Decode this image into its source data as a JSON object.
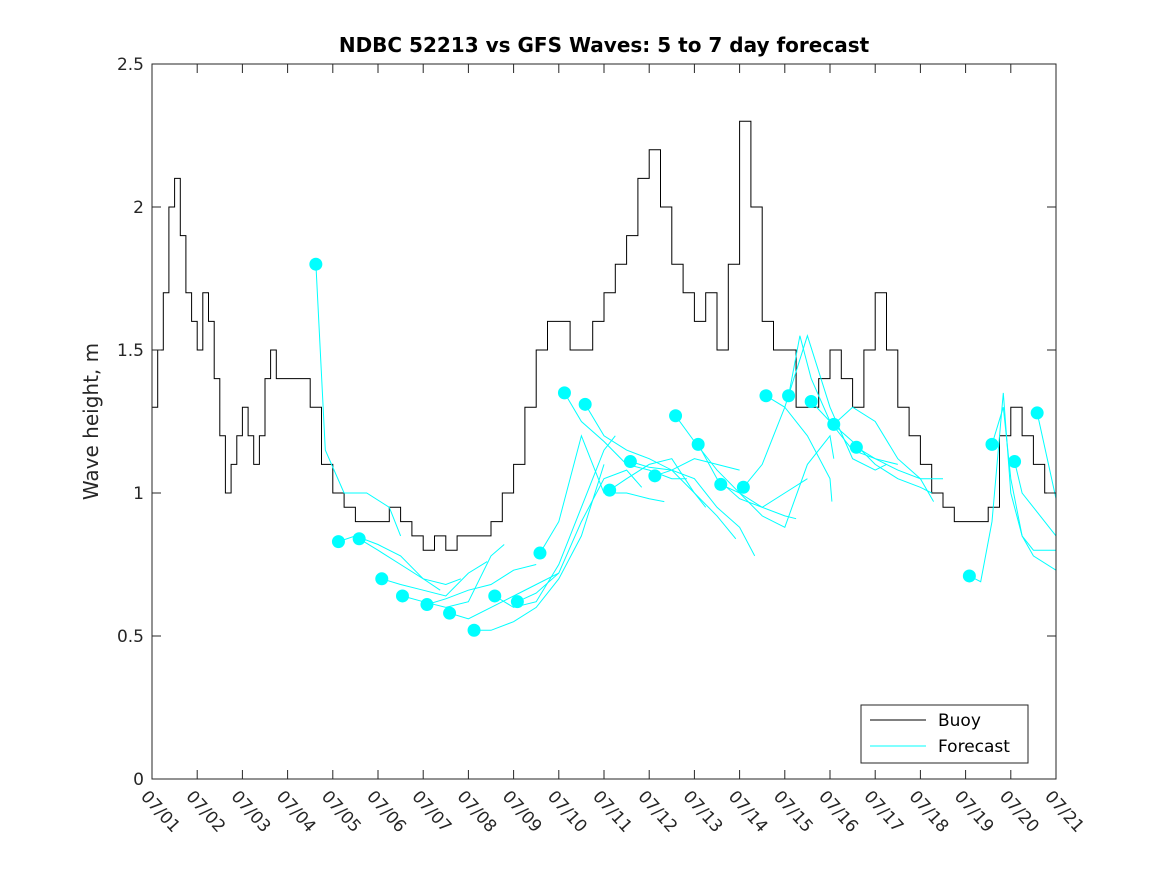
{
  "chart_data": {
    "type": "line",
    "title": "NDBC 52213 vs GFS Waves: 5 to 7 day forecast",
    "xlabel": "",
    "ylabel": "Wave height, m",
    "xlim": [
      "07/01",
      "07/21"
    ],
    "ylim": [
      0,
      2.5
    ],
    "x_tick_labels": [
      "07/01",
      "07/02",
      "07/03",
      "07/04",
      "07/05",
      "07/06",
      "07/07",
      "07/08",
      "07/09",
      "07/10",
      "07/11",
      "07/12",
      "07/13",
      "07/14",
      "07/15",
      "07/16",
      "07/17",
      "07/18",
      "07/19",
      "07/20",
      "07/21"
    ],
    "y_ticks": [
      0,
      0.5,
      1,
      1.5,
      2,
      2.5
    ],
    "y_tick_labels": [
      "0",
      "0.5",
      "1",
      "1.5",
      "2",
      "2.5"
    ],
    "legend": {
      "location": "bottom-right",
      "entries": [
        "Buoy",
        "Forecast"
      ]
    },
    "colors": {
      "buoy": "#000000",
      "forecast": "#00FFFF"
    },
    "series": [
      {
        "name": "Buoy",
        "x": [
          "07/01 00:00",
          "07/01 03:00",
          "07/01 06:00",
          "07/01 09:00",
          "07/01 12:00",
          "07/01 15:00",
          "07/01 18:00",
          "07/01 21:00",
          "07/02 00:00",
          "07/02 03:00",
          "07/02 06:00",
          "07/02 09:00",
          "07/02 12:00",
          "07/02 15:00",
          "07/02 18:00",
          "07/02 21:00",
          "07/03 00:00",
          "07/03 03:00",
          "07/03 06:00",
          "07/03 09:00",
          "07/03 12:00",
          "07/03 15:00",
          "07/03 18:00",
          "07/03 21:00",
          "07/04 00:00",
          "07/04 06:00",
          "07/04 12:00",
          "07/04 18:00",
          "07/05 00:00",
          "07/05 06:00",
          "07/05 12:00",
          "07/05 18:00",
          "07/06 00:00",
          "07/06 06:00",
          "07/06 12:00",
          "07/06 18:00",
          "07/07 00:00",
          "07/07 06:00",
          "07/07 12:00",
          "07/07 18:00",
          "07/08 00:00",
          "07/08 06:00",
          "07/08 12:00",
          "07/08 18:00",
          "07/09 00:00",
          "07/09 06:00",
          "07/09 12:00",
          "07/09 18:00",
          "07/10 00:00",
          "07/10 06:00",
          "07/10 12:00",
          "07/10 18:00",
          "07/11 00:00",
          "07/11 06:00",
          "07/11 12:00",
          "07/11 18:00",
          "07/12 00:00",
          "07/12 06:00",
          "07/12 12:00",
          "07/12 18:00",
          "07/13 00:00",
          "07/13 06:00",
          "07/13 12:00",
          "07/13 18:00",
          "07/14 00:00",
          "07/14 06:00",
          "07/14 12:00",
          "07/14 18:00",
          "07/15 00:00",
          "07/15 06:00",
          "07/15 12:00",
          "07/15 18:00",
          "07/16 00:00",
          "07/16 06:00",
          "07/16 12:00",
          "07/16 18:00",
          "07/17 00:00",
          "07/17 06:00",
          "07/17 12:00",
          "07/17 18:00",
          "07/18 00:00",
          "07/18 06:00",
          "07/18 12:00",
          "07/18 18:00",
          "07/19 00:00",
          "07/19 06:00",
          "07/19 12:00",
          "07/19 18:00",
          "07/20 00:00",
          "07/20 06:00",
          "07/20 12:00",
          "07/20 18:00",
          "07/21 00:00"
        ],
        "y": [
          1.3,
          1.5,
          1.7,
          2.0,
          2.1,
          1.9,
          1.7,
          1.6,
          1.5,
          1.7,
          1.6,
          1.4,
          1.2,
          1.0,
          1.1,
          1.2,
          1.3,
          1.2,
          1.1,
          1.2,
          1.4,
          1.5,
          1.4,
          1.4,
          1.4,
          1.4,
          1.3,
          1.1,
          1.0,
          0.95,
          0.9,
          0.9,
          0.9,
          0.95,
          0.9,
          0.85,
          0.8,
          0.85,
          0.8,
          0.85,
          0.85,
          0.85,
          0.9,
          1.0,
          1.1,
          1.3,
          1.5,
          1.6,
          1.6,
          1.5,
          1.5,
          1.6,
          1.7,
          1.8,
          1.9,
          2.1,
          2.2,
          2.0,
          1.8,
          1.7,
          1.6,
          1.7,
          1.5,
          1.8,
          2.3,
          2.0,
          1.6,
          1.5,
          1.5,
          1.3,
          1.3,
          1.4,
          1.5,
          1.4,
          1.3,
          1.5,
          1.7,
          1.5,
          1.3,
          1.2,
          1.1,
          1.0,
          0.95,
          0.9,
          0.9,
          0.9,
          0.95,
          1.2,
          1.3,
          1.2,
          1.1,
          1.0,
          1.0
        ]
      },
      {
        "name": "Forecast",
        "runs": [
          {
            "x": [
              "07/04 15:00",
              "07/04 20:00",
              "07/05 06:00",
              "07/05 18:00",
              "07/06 06:00",
              "07/06 12:00"
            ],
            "y": [
              1.8,
              1.15,
              1.0,
              1.0,
              0.95,
              0.85
            ]
          },
          {
            "x": [
              "07/05 03:00",
              "07/05 12:00",
              "07/06 00:00",
              "07/06 12:00",
              "07/07 00:00",
              "07/07 09:00"
            ],
            "y": [
              0.83,
              0.85,
              0.82,
              0.78,
              0.7,
              0.66
            ]
          },
          {
            "x": [
              "07/05 14:00",
              "07/06 00:00",
              "07/06 12:00",
              "07/07 00:00",
              "07/07 12:00",
              "07/07 20:00"
            ],
            "y": [
              0.84,
              0.8,
              0.75,
              0.7,
              0.68,
              0.7
            ]
          },
          {
            "x": [
              "07/06 02:00",
              "07/06 12:00",
              "07/07 00:00",
              "07/07 12:00",
              "07/08 00:00",
              "07/08 10:00"
            ],
            "y": [
              0.7,
              0.68,
              0.66,
              0.64,
              0.72,
              0.76
            ]
          },
          {
            "x": [
              "07/06 13:00",
              "07/07 00:00",
              "07/07 12:00",
              "07/08 00:00",
              "07/08 12:00",
              "07/08 19:00"
            ],
            "y": [
              0.64,
              0.62,
              0.6,
              0.62,
              0.78,
              0.82
            ]
          },
          {
            "x": [
              "07/07 02:00",
              "07/07 12:00",
              "07/08 00:00",
              "07/08 12:00",
              "07/09 00:00",
              "07/09 12:00"
            ],
            "y": [
              0.61,
              0.63,
              0.66,
              0.68,
              0.73,
              0.75
            ]
          },
          {
            "x": [
              "07/07 14:00",
              "07/08 00:00",
              "07/08 12:00",
              "07/09 00:00",
              "07/09 12:00",
              "07/10 00:00"
            ],
            "y": [
              0.58,
              0.56,
              0.6,
              0.64,
              0.68,
              0.72
            ]
          },
          {
            "x": [
              "07/08 03:00",
              "07/08 12:00",
              "07/09 00:00",
              "07/09 12:00",
              "07/10 00:00",
              "07/10 12:00",
              "07/11 00:00"
            ],
            "y": [
              0.52,
              0.52,
              0.55,
              0.6,
              0.7,
              0.85,
              1.1
            ]
          },
          {
            "x": [
              "07/08 14:00",
              "07/09 00:00",
              "07/09 12:00",
              "07/10 00:00",
              "07/10 12:00",
              "07/11 00:00",
              "07/11 06:00"
            ],
            "y": [
              0.64,
              0.6,
              0.62,
              0.75,
              0.95,
              1.15,
              1.2
            ]
          },
          {
            "x": [
              "07/09 02:00",
              "07/09 12:00",
              "07/10 00:00",
              "07/10 12:00",
              "07/11 00:00",
              "07/11 12:00",
              "07/11 20:00"
            ],
            "y": [
              0.62,
              0.65,
              0.72,
              0.9,
              1.05,
              1.08,
              1.02
            ]
          },
          {
            "x": [
              "07/09 14:00",
              "07/10 00:00",
              "07/10 12:00",
              "07/11 00:00",
              "07/11 12:00",
              "07/12 00:00",
              "07/12 08:00"
            ],
            "y": [
              0.79,
              0.9,
              1.2,
              1.0,
              1.0,
              0.98,
              0.97
            ]
          },
          {
            "x": [
              "07/10 03:00",
              "07/10 12:00",
              "07/11 00:00",
              "07/11 12:00",
              "07/12 00:00",
              "07/12 12:00",
              "07/12 20:00"
            ],
            "y": [
              1.35,
              1.25,
              1.18,
              1.1,
              1.08,
              1.05,
              1.05
            ]
          },
          {
            "x": [
              "07/10 14:00",
              "07/11 00:00",
              "07/11 12:00",
              "07/12 00:00",
              "07/12 12:00",
              "07/13 00:00",
              "07/13 06:00"
            ],
            "y": [
              1.31,
              1.2,
              1.15,
              1.12,
              1.08,
              1.0,
              0.95
            ]
          },
          {
            "x": [
              "07/11 03:00",
              "07/11 12:00",
              "07/12 00:00",
              "07/12 12:00",
              "07/13 00:00",
              "07/13 12:00",
              "07/13 22:00"
            ],
            "y": [
              1.01,
              1.05,
              1.1,
              1.12,
              1.0,
              0.92,
              0.84
            ]
          },
          {
            "x": [
              "07/11 14:00",
              "07/12 00:00",
              "07/12 12:00",
              "07/13 00:00",
              "07/13 12:00",
              "07/14 00:00",
              "07/14 08:00"
            ],
            "y": [
              1.11,
              1.09,
              1.08,
              1.05,
              0.95,
              0.88,
              0.78
            ]
          },
          {
            "x": [
              "07/12 03:00",
              "07/12 12:00",
              "07/13 00:00",
              "07/13 12:00",
              "07/14 00:00"
            ],
            "y": [
              1.06,
              1.08,
              1.12,
              1.1,
              1.08
            ]
          },
          {
            "x": [
              "07/12 14:00",
              "07/13 00:00",
              "07/13 12:00",
              "07/14 00:00",
              "07/14 12:00",
              "07/15 00:00",
              "07/15 06:00"
            ],
            "y": [
              1.27,
              1.18,
              1.08,
              1.0,
              0.95,
              0.92,
              0.91
            ]
          },
          {
            "x": [
              "07/13 02:00",
              "07/13 12:00",
              "07/14 00:00",
              "07/14 12:00",
              "07/15 00:00",
              "07/15 12:00"
            ],
            "y": [
              1.17,
              1.05,
              0.98,
              0.95,
              1.0,
              1.05
            ]
          },
          {
            "x": [
              "07/13 14:00",
              "07/14 00:00",
              "07/14 12:00",
              "07/15 00:00",
              "07/15 12:00",
              "07/16 00:00",
              "07/16 02:00"
            ],
            "y": [
              1.03,
              1.0,
              0.92,
              0.88,
              1.1,
              1.2,
              1.12
            ]
          },
          {
            "x": [
              "07/14 02:00",
              "07/14 12:00",
              "07/15 00:00",
              "07/15 12:00",
              "07/16 00:00",
              "07/16 01:00"
            ],
            "y": [
              1.02,
              1.1,
              1.3,
              1.2,
              1.05,
              0.97
            ]
          },
          {
            "x": [
              "07/14 14:00",
              "07/15 00:00",
              "07/15 12:00",
              "07/16 00:00",
              "07/16 12:00",
              "07/17 00:00",
              "07/17 06:00"
            ],
            "y": [
              1.34,
              1.3,
              1.55,
              1.3,
              1.12,
              1.08,
              1.1
            ]
          },
          {
            "x": [
              "07/15 02:00",
              "07/15 08:00",
              "07/15 14:00",
              "07/16 00:00",
              "07/16 12:00",
              "07/17 00:00",
              "07/17 12:00"
            ],
            "y": [
              1.34,
              1.55,
              1.4,
              1.25,
              1.15,
              1.12,
              1.1
            ]
          },
          {
            "x": [
              "07/15 14:00",
              "07/16 00:00",
              "07/16 12:00",
              "07/17 00:00",
              "07/17 12:00",
              "07/18 00:00",
              "07/18 06:00"
            ],
            "y": [
              1.32,
              1.25,
              1.18,
              1.1,
              1.05,
              1.02,
              1.0
            ]
          },
          {
            "x": [
              "07/16 02:00",
              "07/16 12:00",
              "07/17 00:00",
              "07/17 12:00",
              "07/18 00:00",
              "07/18 07:00"
            ],
            "y": [
              1.24,
              1.3,
              1.25,
              1.12,
              1.05,
              0.97
            ]
          },
          {
            "x": [
              "07/16 14:00",
              "07/17 00:00",
              "07/17 12:00",
              "07/18 00:00",
              "07/18 12:00"
            ],
            "y": [
              1.16,
              1.12,
              1.08,
              1.05,
              1.05
            ]
          },
          {
            "x": [
              "07/19 02:00",
              "07/19 08:00",
              "07/19 14:00",
              "07/19 20:00",
              "07/20 00:00",
              "07/20 06:00",
              "07/20 12:00",
              "07/21 00:00"
            ],
            "y": [
              0.71,
              0.69,
              0.9,
              1.35,
              1.0,
              0.85,
              0.8,
              0.8
            ]
          },
          {
            "x": [
              "07/19 14:00",
              "07/19 20:00",
              "07/20 00:00",
              "07/20 06:00",
              "07/20 12:00",
              "07/21 00:00"
            ],
            "y": [
              1.17,
              1.3,
              1.05,
              0.85,
              0.78,
              0.73
            ]
          },
          {
            "x": [
              "07/20 02:00",
              "07/20 06:00",
              "07/20 12:00",
              "07/21 00:00"
            ],
            "y": [
              1.11,
              1.0,
              0.95,
              0.85
            ]
          },
          {
            "x": [
              "07/20 14:00",
              "07/20 20:00",
              "07/21 00:00"
            ],
            "y": [
              1.28,
              1.1,
              0.98
            ]
          }
        ]
      }
    ]
  }
}
